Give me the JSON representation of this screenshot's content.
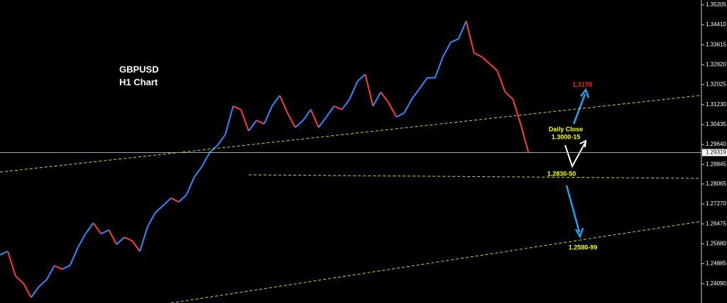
{
  "chart_data": {
    "type": "line",
    "title": "GBPUSD",
    "subtitle": "H1 Chart",
    "series": [
      {
        "name": "GBPUSD",
        "up_color": "#2a8cff",
        "down_color": "#ff3a3a",
        "values": [
          1.2524,
          1.2538,
          1.2439,
          1.2411,
          1.2354,
          1.2397,
          1.2425,
          1.2481,
          1.2467,
          1.2481,
          1.2552,
          1.2608,
          1.2651,
          1.2608,
          1.2623,
          1.2566,
          1.2594,
          1.258,
          1.2538,
          1.2637,
          1.2693,
          1.2721,
          1.275,
          1.2735,
          1.2764,
          1.2834,
          1.2877,
          1.2933,
          1.2961,
          1.3004,
          1.3117,
          1.3103,
          1.3018,
          1.306,
          1.3046,
          1.3117,
          1.3159,
          1.3089,
          1.3032,
          1.306,
          1.3103,
          1.3032,
          1.3074,
          1.3117,
          1.3103,
          1.3145,
          1.3216,
          1.3244,
          1.3117,
          1.3173,
          1.3131,
          1.3074,
          1.3089,
          1.3145,
          1.3187,
          1.323,
          1.323,
          1.3314,
          1.3371,
          1.3385,
          1.3456,
          1.3329,
          1.3314,
          1.3286,
          1.3258,
          1.3173,
          1.3145,
          1.3046,
          1.2933
        ]
      }
    ],
    "xlim": [
      0,
      90
    ],
    "ylim": [
      1.2332,
      1.354
    ],
    "yticks": [
      1.35205,
      {
        "value": 1.3441,
        "label": "1.34410"
      },
      1.33615,
      {
        "value": 1.3282,
        "label": "1.32820"
      },
      1.32025,
      {
        "value": 1.3123,
        "label": "1.31230"
      },
      1.30435,
      {
        "value": 1.2964,
        "label": "1.29640"
      },
      1.28845,
      1.28065,
      {
        "value": 1.2727,
        "label": "1.27270"
      },
      1.26475,
      {
        "value": 1.2568,
        "label": "1.25680"
      },
      1.24885,
      {
        "value": 1.2409,
        "label": "1.24090"
      }
    ],
    "current_price": {
      "value": 1.29319,
      "label": "1.29319"
    },
    "trendlines": [
      {
        "x": [
          0,
          90
        ],
        "y": [
          1.2854,
          1.3159
        ],
        "color": "#d8d820"
      },
      {
        "x": [
          32,
          90
        ],
        "y": [
          1.2843,
          1.2829
        ],
        "color": "#d8d820"
      },
      {
        "x": [
          22,
          90
        ],
        "y": [
          1.2332,
          1.2656
        ],
        "color": "#d8d820"
      }
    ],
    "annotations": [
      {
        "text": "1.3170",
        "color": "#ff2020"
      },
      {
        "text": "Daily Close",
        "color": "#ffff00"
      },
      {
        "text": "1.3000-15",
        "color": "#ffff00"
      },
      {
        "text": "1.2830-50",
        "color": "#ffff00"
      },
      {
        "text": "1.2580-99",
        "color": "#ffff00"
      }
    ]
  }
}
